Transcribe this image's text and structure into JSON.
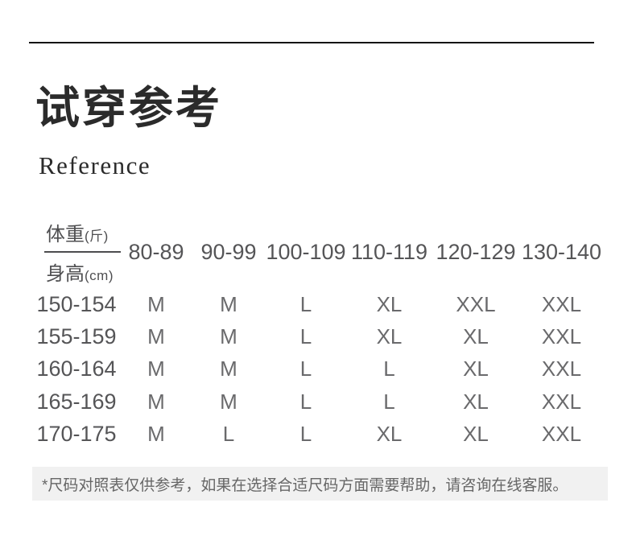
{
  "header": {
    "title": "试穿参考",
    "subtitle": "Reference"
  },
  "size_table": {
    "corner": {
      "weight_label": "体重",
      "weight_unit": "(斤)",
      "height_label": "身高",
      "height_unit": "(cm)"
    },
    "weight_columns": [
      "80-89",
      "90-99",
      "100-109",
      "110-119",
      "120-129",
      "130-140"
    ],
    "rows": [
      {
        "height": "150-154",
        "sizes": [
          "M",
          "M",
          "L",
          "XL",
          "XXL",
          "XXL"
        ]
      },
      {
        "height": "155-159",
        "sizes": [
          "M",
          "M",
          "L",
          "XL",
          "XL",
          "XXL"
        ]
      },
      {
        "height": "160-164",
        "sizes": [
          "M",
          "M",
          "L",
          "L",
          "XL",
          "XXL"
        ]
      },
      {
        "height": "165-169",
        "sizes": [
          "M",
          "M",
          "L",
          "L",
          "XL",
          "XXL"
        ]
      },
      {
        "height": "170-175",
        "sizes": [
          "M",
          "L",
          "L",
          "XL",
          "XL",
          "XXL"
        ]
      }
    ]
  },
  "footnote": {
    "text": "*尺码对照表仅供参考，如果在选择合适尺码方面需要帮助，请咨询在线客服。"
  },
  "colors": {
    "top_rule": "#141414",
    "title_text": "#2b2b2b",
    "table_text": "#555557",
    "size_text": "#6a6a6c",
    "footnote_bg": "#f1f1f1",
    "footnote_text": "#666666",
    "background": "#ffffff"
  }
}
